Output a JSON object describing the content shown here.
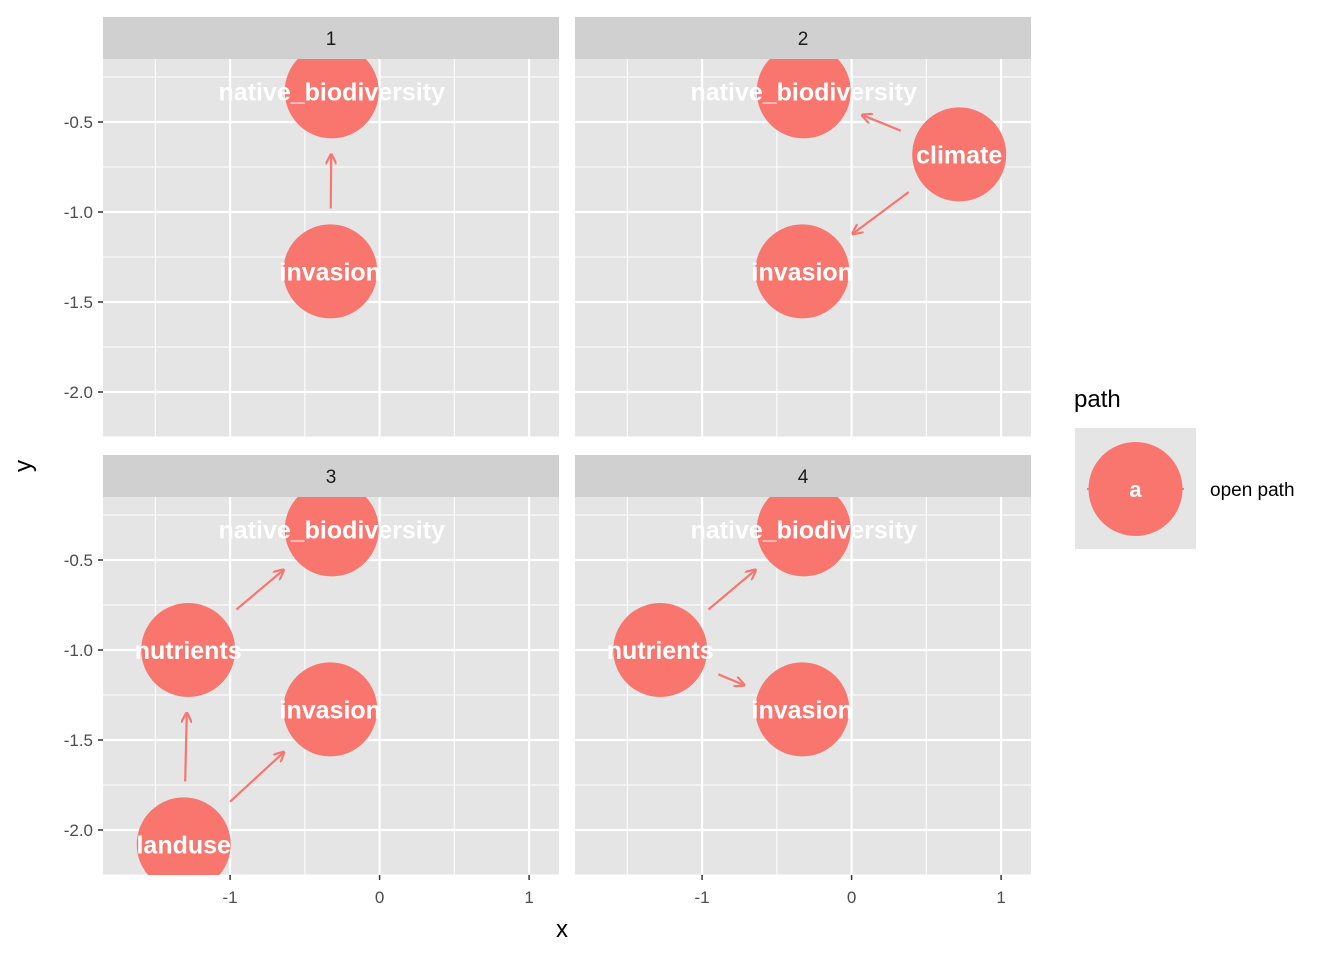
{
  "chart_data": {
    "type": "scatter",
    "xlabel": "x",
    "ylabel": "y",
    "xlim": [
      -1.85,
      1.2
    ],
    "ylim": [
      -2.25,
      -0.15
    ],
    "x_ticks": [
      -1,
      0,
      1
    ],
    "y_ticks": [
      -2.0,
      -1.5,
      -1.0,
      -0.5
    ],
    "x_tick_labels": [
      "-1",
      "0",
      "1"
    ],
    "y_tick_labels": [
      "-2.0",
      "-1.5",
      "-1.0",
      "-0.5"
    ],
    "grid": true,
    "legend": {
      "title": "path",
      "position": "right",
      "entries": [
        {
          "key": "a",
          "label": "open path",
          "color": "#F8766D"
        }
      ]
    },
    "panels": [
      {
        "strip": "1",
        "nodes": [
          {
            "name": "native_biodiversity",
            "x": -0.32,
            "y": -0.33
          },
          {
            "name": "invasion",
            "x": -0.33,
            "y": -1.33
          }
        ],
        "edges": [
          {
            "from": "invasion",
            "to": "native_biodiversity"
          }
        ]
      },
      {
        "strip": "2",
        "nodes": [
          {
            "name": "native_biodiversity",
            "x": -0.32,
            "y": -0.33
          },
          {
            "name": "climate",
            "x": 0.72,
            "y": -0.68
          },
          {
            "name": "invasion",
            "x": -0.33,
            "y": -1.33
          }
        ],
        "edges": [
          {
            "from": "climate",
            "to": "native_biodiversity"
          },
          {
            "from": "climate",
            "to": "invasion"
          }
        ]
      },
      {
        "strip": "3",
        "nodes": [
          {
            "name": "native_biodiversity",
            "x": -0.32,
            "y": -0.33
          },
          {
            "name": "nutrients",
            "x": -1.28,
            "y": -1.0
          },
          {
            "name": "invasion",
            "x": -0.33,
            "y": -1.33
          },
          {
            "name": "landuse",
            "x": -1.31,
            "y": -2.08
          }
        ],
        "edges": [
          {
            "from": "nutrients",
            "to": "native_biodiversity"
          },
          {
            "from": "landuse",
            "to": "nutrients"
          },
          {
            "from": "landuse",
            "to": "invasion"
          }
        ]
      },
      {
        "strip": "4",
        "nodes": [
          {
            "name": "native_biodiversity",
            "x": -0.32,
            "y": -0.33
          },
          {
            "name": "nutrients",
            "x": -1.28,
            "y": -1.0
          },
          {
            "name": "invasion",
            "x": -0.33,
            "y": -1.33
          }
        ],
        "edges": [
          {
            "from": "nutrients",
            "to": "native_biodiversity"
          },
          {
            "from": "nutrients",
            "to": "invasion"
          }
        ]
      }
    ],
    "colors": {
      "node": "#F8766D",
      "edge": "#F8766D",
      "panel_bg": "#E5E5E5",
      "strip_bg": "#D0D0D0",
      "grid": "#FFFFFF"
    }
  }
}
